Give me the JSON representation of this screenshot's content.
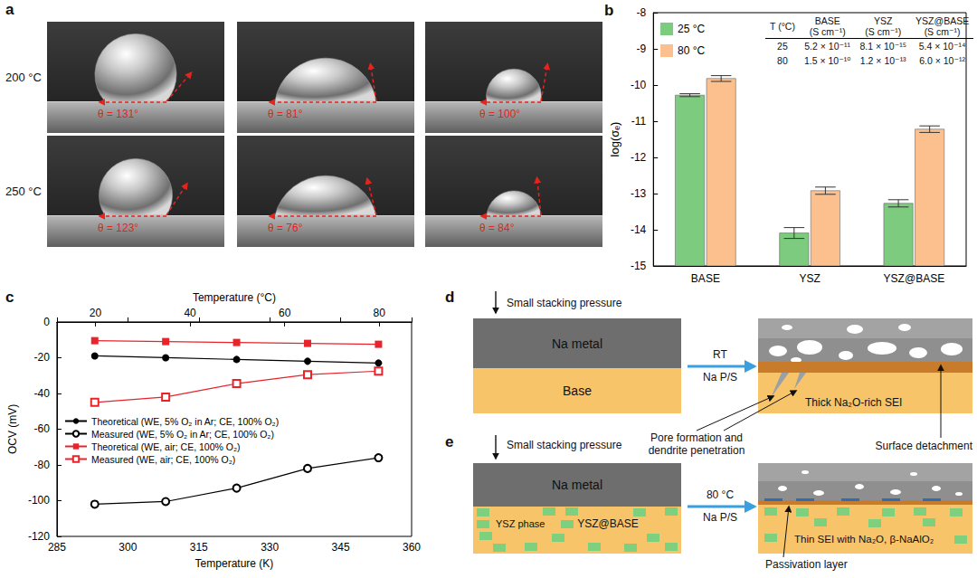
{
  "chart_data": [
    {
      "label": "b",
      "type": "bar",
      "y_label": "log(σₑ)",
      "categories": [
        "BASE",
        "YSZ",
        "YSZ@BASE"
      ],
      "series": [
        {
          "name": "25 °C",
          "color": "#7ccb7e",
          "values": [
            -10.28,
            -14.09,
            -13.27
          ],
          "errors": [
            0.04,
            0.15,
            0.1
          ]
        },
        {
          "name": "80 °C",
          "color": "#fbc08e",
          "values": [
            -9.82,
            -12.92,
            -11.22
          ],
          "errors": [
            0.08,
            0.1,
            0.09
          ]
        }
      ],
      "ylim": [
        -15,
        -8
      ],
      "yticks": [
        -15,
        -14,
        -13,
        -12,
        -11,
        -10,
        -9,
        -8
      ],
      "grid": false,
      "legend": "upper left",
      "table": {
        "header": [
          [
            "T (°C)"
          ],
          [
            "BASE",
            "(S cm⁻¹)"
          ],
          [
            "YSZ",
            "(S cm⁻¹)"
          ],
          [
            "YSZ@BASE",
            "(S cm⁻¹)"
          ]
        ],
        "rows": [
          [
            "25",
            "5.2 × 10⁻¹¹",
            "8.1 × 10⁻¹⁵",
            "5.4 × 10⁻¹⁴"
          ],
          [
            "80",
            "1.5 × 10⁻¹⁰",
            "1.2 × 10⁻¹³",
            "6.0 × 10⁻¹²"
          ]
        ]
      }
    },
    {
      "label": "c",
      "type": "line",
      "x_label": "Temperature (K)",
      "x2_label": "Temperature (°C)",
      "y_label": "OCV (mV)",
      "x": [
        293,
        308,
        323,
        338,
        353
      ],
      "series": [
        {
          "name": "Theoretical (WE, 5% O₂ in Ar; CE, 100% O₂)",
          "color": "#000000",
          "marker": "filled_circle",
          "line_style": "solid",
          "values": [
            -19,
            -20,
            -21,
            -22,
            -23
          ]
        },
        {
          "name": "Measured (WE, 5% O₂ in Ar; CE, 100% O₂)",
          "color": "#000000",
          "marker": "open_circle",
          "line_style": "solid",
          "values": [
            -102,
            -100.5,
            -93,
            -82,
            -76
          ]
        },
        {
          "name": "Theoretical (WE, air; CE, 100% O₂)",
          "color": "#e8232a",
          "marker": "filled_square",
          "line_style": "solid",
          "values": [
            -10.5,
            -11,
            -11.5,
            -12,
            -12.5
          ]
        },
        {
          "name": "Measured (WE, air; CE, 100% O₂)",
          "color": "#e8232a",
          "marker": "open_square",
          "line_style": "solid",
          "values": [
            -45,
            -42,
            -34.5,
            -29.5,
            -27.5
          ]
        }
      ],
      "xlim": [
        285,
        360
      ],
      "xticks": [
        285,
        300,
        315,
        330,
        345,
        360
      ],
      "x2lim": [
        11.85,
        86.85
      ],
      "x2ticks": [
        20,
        40,
        60,
        80
      ],
      "ylim": [
        -120,
        0
      ],
      "yticks": [
        -120,
        -100,
        -80,
        -60,
        -40,
        -20,
        0
      ],
      "grid": false,
      "legend": "left"
    }
  ],
  "photos": {
    "label": "a",
    "rows": [
      {
        "label": "200 °C",
        "contact_angles": [
          {
            "value": 131,
            "label": "θ = 131°"
          },
          {
            "value": 81,
            "label": "θ = 81°"
          },
          {
            "value": 100,
            "label": "θ = 100°"
          }
        ]
      },
      {
        "label": "250 °C",
        "contact_angles": [
          {
            "value": 123,
            "label": "θ = 123°"
          },
          {
            "value": 76,
            "label": "θ = 76°"
          },
          {
            "value": 84,
            "label": "θ = 84°"
          }
        ]
      }
    ]
  },
  "diagrams": [
    {
      "label": "d",
      "pressure": "Small stacking pressure",
      "layers": [
        "Na metal",
        "Base"
      ],
      "condition": "RT",
      "process": "Na P/S",
      "annotations": [
        [
          "Thick Na₂O-rich SEI"
        ],
        [
          "Pore formation and",
          "dendrite penetration"
        ],
        [
          "Surface detachment"
        ]
      ]
    },
    {
      "label": "e",
      "pressure": "Small stacking pressure",
      "layers": [
        "Na metal",
        "YSZ@BASE"
      ],
      "condition": "80 °C",
      "process": "Na P/S",
      "annotations": [
        [
          "YSZ phase"
        ],
        [
          "Thin SEI with Na₂O, β-NaAlO₂"
        ],
        [
          "Passivation layer"
        ]
      ]
    }
  ]
}
